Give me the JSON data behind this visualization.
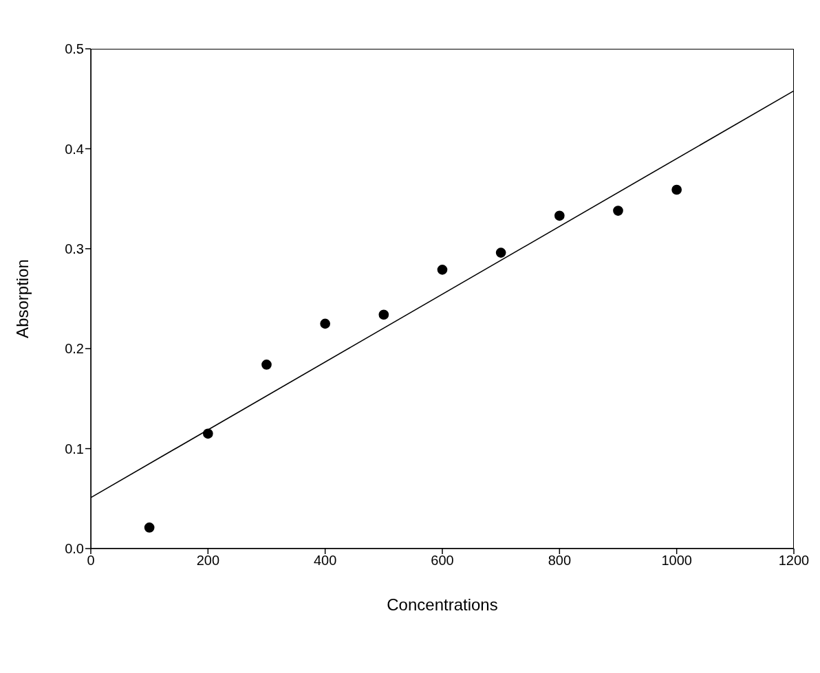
{
  "chart_data": {
    "type": "scatter",
    "xlabel": "Concentrations",
    "ylabel": "Absorption",
    "x": [
      100,
      200,
      300,
      400,
      500,
      600,
      700,
      800,
      900,
      1000
    ],
    "series": [
      {
        "color": "#000000",
        "marker": "circle",
        "values": [
          0.021,
          0.115,
          0.184,
          0.225,
          0.234,
          0.279,
          0.296,
          0.333,
          0.338,
          0.359
        ]
      },
      {
        "type": "line",
        "color": "#000000",
        "x": [
          0,
          1200
        ],
        "values": [
          0.051,
          0.458
        ],
        "marker": "none",
        "line_style": "solid"
      }
    ],
    "xlim": [
      0,
      1200
    ],
    "xticks": [
      0,
      200,
      400,
      600,
      800,
      1000,
      1200
    ],
    "ylim": [
      0,
      0.5
    ],
    "yticks": [
      {
        "value": 0,
        "label": "0.0"
      },
      0.1,
      0.2,
      0.3,
      0.4,
      0.5
    ],
    "grid": false
  }
}
